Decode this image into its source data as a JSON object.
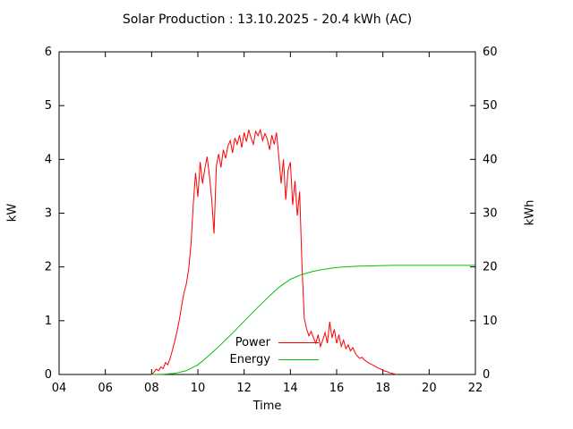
{
  "chart_data": {
    "type": "line",
    "title": "Solar Production : 13.10.2025 - 20.4 kWh (AC)",
    "xlabel": "Time",
    "x_range": [
      4,
      22
    ],
    "x_ticks": [
      4,
      6,
      8,
      10,
      12,
      14,
      16,
      18,
      20,
      22
    ],
    "x_tick_labels": [
      "04",
      "06",
      "08",
      "10",
      "12",
      "14",
      "16",
      "18",
      "20",
      "22"
    ],
    "left_axis": {
      "label": "kW",
      "range": [
        0,
        6
      ],
      "ticks": [
        0,
        1,
        2,
        3,
        4,
        5,
        6
      ]
    },
    "right_axis": {
      "label": "kWh",
      "range": [
        0,
        60
      ],
      "ticks": [
        0,
        10,
        20,
        30,
        40,
        50,
        60
      ]
    },
    "grid": false,
    "legend_position": "bottom-center-inside",
    "colors": {
      "power": "#ff0000",
      "energy": "#00c000",
      "axis": "#000000",
      "background": "#ffffff"
    },
    "series": [
      {
        "name": "Power",
        "unit": "kW",
        "axis": "left",
        "color": "#ff0000",
        "t_start": 8.0,
        "t_step": 0.1,
        "values": [
          0.0,
          0.04,
          0.1,
          0.07,
          0.14,
          0.11,
          0.22,
          0.18,
          0.3,
          0.45,
          0.62,
          0.8,
          1.02,
          1.28,
          1.52,
          1.68,
          1.95,
          2.4,
          3.15,
          3.75,
          3.3,
          3.95,
          3.55,
          3.82,
          4.05,
          3.7,
          3.25,
          2.62,
          3.88,
          4.1,
          3.85,
          4.18,
          4.02,
          4.25,
          4.35,
          4.12,
          4.4,
          4.28,
          4.45,
          4.22,
          4.5,
          4.33,
          4.55,
          4.4,
          4.28,
          4.52,
          4.44,
          4.55,
          4.35,
          4.48,
          4.38,
          4.18,
          4.45,
          4.28,
          4.5,
          4.05,
          3.55,
          4.0,
          3.25,
          3.8,
          3.95,
          3.15,
          3.6,
          2.95,
          3.4,
          2.05,
          1.05,
          0.85,
          0.72,
          0.8,
          0.68,
          0.58,
          0.74,
          0.52,
          0.64,
          0.78,
          0.58,
          0.98,
          0.68,
          0.84,
          0.58,
          0.74,
          0.52,
          0.64,
          0.48,
          0.55,
          0.44,
          0.5,
          0.4,
          0.34,
          0.3,
          0.32,
          0.27,
          0.24,
          0.21,
          0.19,
          0.17,
          0.14,
          0.12,
          0.1,
          0.08,
          0.06,
          0.05,
          0.03,
          0.02,
          0.01,
          0.0
        ]
      },
      {
        "name": "Energy",
        "unit": "kWh",
        "axis": "right",
        "color": "#00c000",
        "points": [
          [
            8.0,
            0
          ],
          [
            8.5,
            0.05
          ],
          [
            9.0,
            0.2
          ],
          [
            9.5,
            0.7
          ],
          [
            10.0,
            1.8
          ],
          [
            10.5,
            3.6
          ],
          [
            11.0,
            5.6
          ],
          [
            11.5,
            7.7
          ],
          [
            12.0,
            9.9
          ],
          [
            12.5,
            12.1
          ],
          [
            13.0,
            14.2
          ],
          [
            13.5,
            16.2
          ],
          [
            14.0,
            17.7
          ],
          [
            14.5,
            18.6
          ],
          [
            15.0,
            19.2
          ],
          [
            15.5,
            19.6
          ],
          [
            16.0,
            19.9
          ],
          [
            16.5,
            20.05
          ],
          [
            17.0,
            20.15
          ],
          [
            17.5,
            20.2
          ],
          [
            18.0,
            20.25
          ],
          [
            18.5,
            20.3
          ],
          [
            22.0,
            20.3
          ]
        ]
      }
    ]
  }
}
